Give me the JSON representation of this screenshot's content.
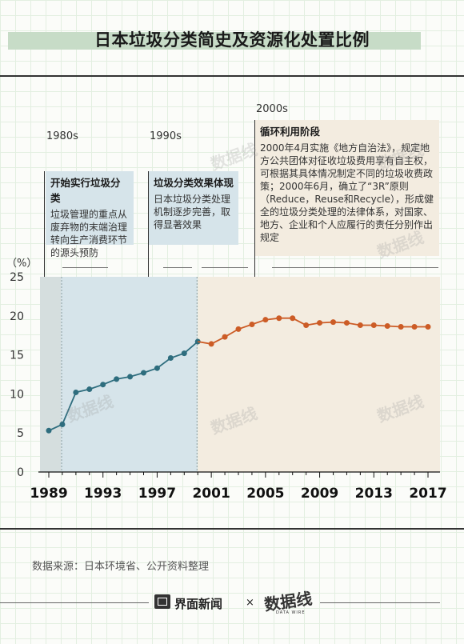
{
  "title": "日本垃圾分类简史及资源化处置比例",
  "eras": [
    {
      "label": "1980s",
      "heading": "开始实行垃圾分类",
      "text": "垃圾管理的重点从废弃物的末端治理转向生产消费环节的源头预防"
    },
    {
      "label": "1990s",
      "heading": "垃圾分类效果体现",
      "text": "日本垃圾分类处理机制逐步完善，取得显著效果"
    },
    {
      "label": "2000s",
      "heading": "循环利用阶段",
      "text": "2000年4月实施《地方自治法》，规定地方公共团体对征收垃圾费用享有自主权，可根据其具体情况制定不同的垃圾收费政策；2000年6月，确立了“3R”原则（Reduce，Reuse和Recycle），形成健全的垃圾分类处理的法律体系，对国家、地方、企业和个人应履行的责任分别作出规定"
    }
  ],
  "chart_data": {
    "type": "line",
    "unit_label": "（%）",
    "ylim": [
      0,
      25
    ],
    "yticks": [
      0,
      5,
      10,
      15,
      20,
      25
    ],
    "xlim": [
      1989,
      2017
    ],
    "xticks": [
      1989,
      1993,
      1997,
      2001,
      2005,
      2009,
      2013,
      2017
    ],
    "grid": false,
    "background_periods": [
      {
        "from": 1989,
        "to": 1990,
        "color": "#d5dede"
      },
      {
        "from": 1990,
        "to": 2000,
        "color": "#d6e4ea"
      },
      {
        "from": 2000,
        "to": 2018,
        "color": "#f3ece0"
      }
    ],
    "series": [
      {
        "color": "#2e6d7e",
        "points": [
          [
            1989,
            5.3
          ],
          [
            1990,
            6.1
          ],
          [
            1991,
            10.2
          ],
          [
            1992,
            10.6
          ],
          [
            1993,
            11.2
          ],
          [
            1994,
            11.9
          ],
          [
            1995,
            12.2
          ],
          [
            1996,
            12.7
          ],
          [
            1997,
            13.3
          ],
          [
            1998,
            14.6
          ],
          [
            1999,
            15.2
          ],
          [
            2000,
            16.7
          ]
        ]
      },
      {
        "color": "#cc5c26",
        "points": [
          [
            2000,
            16.7
          ],
          [
            2001,
            16.4
          ],
          [
            2002,
            17.3
          ],
          [
            2003,
            18.3
          ],
          [
            2004,
            18.9
          ],
          [
            2005,
            19.5
          ],
          [
            2006,
            19.7
          ],
          [
            2007,
            19.7
          ],
          [
            2008,
            18.8
          ],
          [
            2009,
            19.1
          ],
          [
            2010,
            19.2
          ],
          [
            2011,
            19.1
          ],
          [
            2012,
            18.8
          ],
          [
            2013,
            18.8
          ],
          [
            2014,
            18.7
          ],
          [
            2015,
            18.6
          ],
          [
            2016,
            18.6
          ],
          [
            2017,
            18.6
          ]
        ]
      }
    ]
  },
  "footer": {
    "source": "数据来源：日本环境省、公开资料整理",
    "brand1": "界面新闻",
    "times": "×",
    "brand2": "数据线",
    "brand2_sub": "DATA WIRE"
  },
  "watermark_text": "数据线"
}
